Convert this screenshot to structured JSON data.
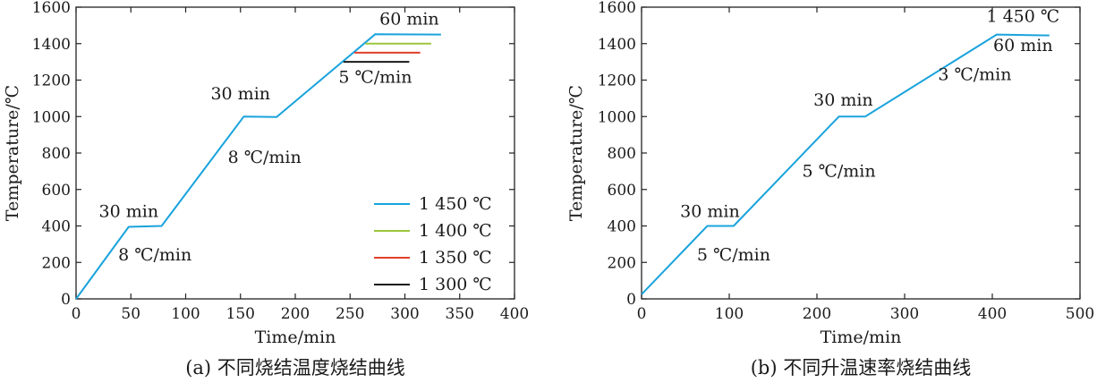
{
  "chart_data": [
    {
      "type": "line",
      "caption": "(a) 不同烧结温度烧结曲线",
      "xlabel": "Time/min",
      "ylabel": "Temperature/℃",
      "xlim": [
        0,
        400
      ],
      "ylim": [
        0,
        1600
      ],
      "xticks": [
        0,
        50,
        100,
        150,
        200,
        250,
        300,
        350,
        400
      ],
      "yticks": [
        0,
        200,
        400,
        600,
        800,
        1000,
        1200,
        1400,
        1600
      ],
      "legend_position": "lower-right",
      "series": [
        {
          "name": "1 450 ℃",
          "color": "#1aa3dc",
          "points": [
            [
              0,
              0
            ],
            [
              48,
              395
            ],
            [
              78,
              400
            ],
            [
              153,
              1000
            ],
            [
              183,
              998
            ],
            [
              273,
              1452
            ],
            [
              333,
              1450
            ]
          ]
        },
        {
          "name": "1 400 ℃",
          "color": "#9dc63c",
          "points": [
            [
              264,
              1400
            ],
            [
              324,
              1400
            ]
          ]
        },
        {
          "name": "1 350 ℃",
          "color": "#e0402a",
          "points": [
            [
              254,
              1350
            ],
            [
              314,
              1350
            ]
          ]
        },
        {
          "name": "1 300 ℃",
          "color": "#1a1a1a",
          "points": [
            [
              244,
              1300
            ],
            [
              304,
              1300
            ]
          ]
        }
      ],
      "annotations": [
        {
          "text": "30 min",
          "x": 48,
          "y": 450
        },
        {
          "text": "8 ℃/min",
          "x": 72,
          "y": 210
        },
        {
          "text": "30 min",
          "x": 150,
          "y": 1095
        },
        {
          "text": "8 ℃/min",
          "x": 172,
          "y": 745
        },
        {
          "text": "60 min",
          "x": 304,
          "y": 1505
        },
        {
          "text": "5 ℃/min",
          "x": 273,
          "y": 1185
        }
      ]
    },
    {
      "type": "line",
      "caption": "(b) 不同升温速率烧结曲线",
      "xlabel": "Time/min",
      "ylabel": "Temperature/℃",
      "xlim": [
        0,
        500
      ],
      "ylim": [
        0,
        1600
      ],
      "xticks": [
        0,
        100,
        200,
        300,
        400,
        500
      ],
      "yticks": [
        0,
        200,
        400,
        600,
        800,
        1000,
        1200,
        1400,
        1600
      ],
      "series": [
        {
          "name": "",
          "color": "#1aa3dc",
          "points": [
            [
              0,
              25
            ],
            [
              75,
              400
            ],
            [
              105,
              400
            ],
            [
              225,
              1000
            ],
            [
              255,
              1000
            ],
            [
              405,
              1450
            ],
            [
              465,
              1445
            ]
          ]
        }
      ],
      "annotations": [
        {
          "text": "1 450 ℃",
          "x": 435,
          "y": 1520
        },
        {
          "text": "60 min",
          "x": 435,
          "y": 1360
        },
        {
          "text": "30 min",
          "x": 78,
          "y": 450
        },
        {
          "text": "5 ℃/min",
          "x": 105,
          "y": 210
        },
        {
          "text": "30 min",
          "x": 230,
          "y": 1060
        },
        {
          "text": "5 ℃/min",
          "x": 225,
          "y": 670
        },
        {
          "text": "3 ℃/min",
          "x": 380,
          "y": 1200
        }
      ]
    }
  ]
}
